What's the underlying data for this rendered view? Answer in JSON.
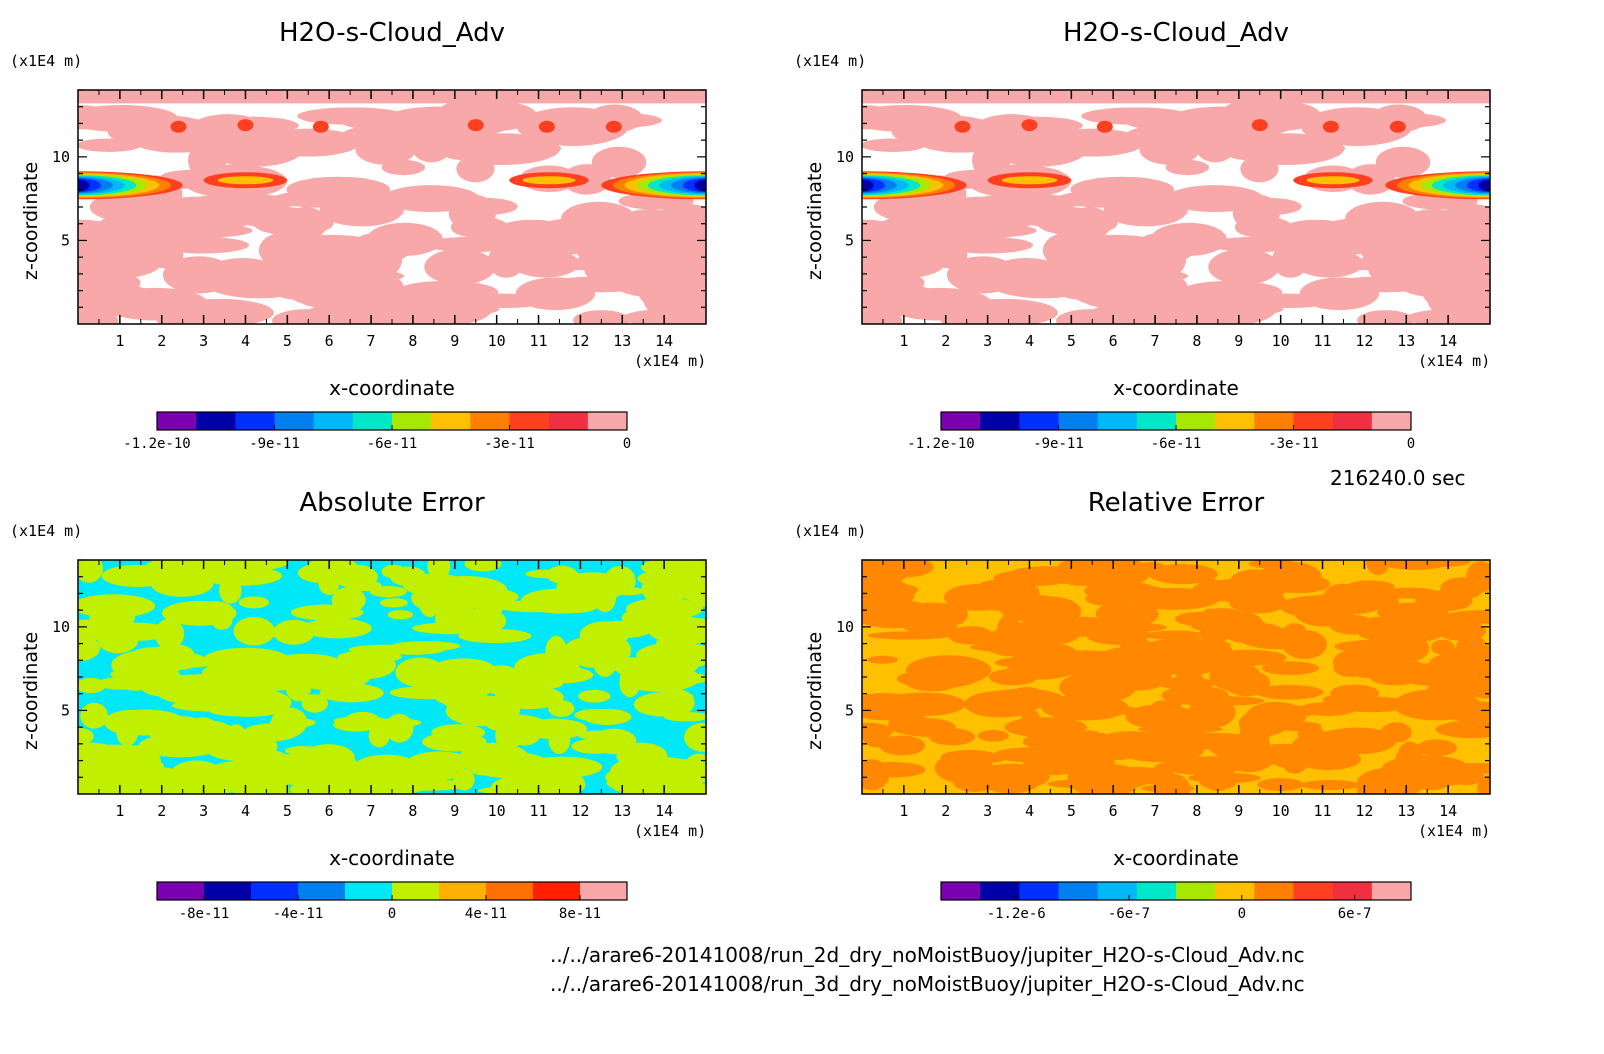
{
  "chart_data": [
    {
      "type": "heatmap",
      "title": "H2O-s-Cloud_Adv",
      "xlabel": "x-coordinate",
      "ylabel": "z-coordinate",
      "x_unit": "(x1E4 m)",
      "y_unit": "(x1E4 m)",
      "xlim": [
        0,
        15
      ],
      "ylim": [
        0,
        14
      ],
      "x_ticks": [
        1,
        2,
        3,
        4,
        5,
        6,
        7,
        8,
        9,
        10,
        11,
        12,
        13,
        14
      ],
      "y_ticks": [
        5,
        10
      ],
      "colorbar": {
        "min": -1.2e-10,
        "max": 0,
        "levels": 11,
        "tick_values": [
          -1.2e-10,
          -9e-11,
          -6e-11,
          -3e-11,
          0
        ],
        "tick_labels": [
          "-1.2e-10",
          "-9e-11",
          "-6e-11",
          "-3e-11",
          "0"
        ],
        "colors": [
          "#7a00b0",
          "#0000a8",
          "#0030ff",
          "#0080f0",
          "#00b8f8",
          "#00e8c8",
          "#a8e800",
          "#ffc000",
          "#ff8000",
          "#ff4020",
          "#f03040",
          "#f8a8a8"
        ]
      },
      "features": [
        {
          "z": 8.3,
          "x_from": 0,
          "x_to": 2.5,
          "value": -1.15e-10,
          "label": "left band"
        },
        {
          "z": 8.3,
          "x_from": 12.5,
          "x_to": 15,
          "value": -1.15e-10,
          "label": "right band"
        },
        {
          "z": 8.6,
          "x_from": 3.0,
          "x_to": 5.0,
          "value": -3e-11,
          "label": "blob"
        },
        {
          "z": 8.6,
          "x_from": 10.3,
          "x_to": 12.2,
          "value": -3e-11,
          "label": "blob"
        }
      ]
    },
    {
      "type": "heatmap",
      "title": "H2O-s-Cloud_Adv",
      "xlabel": "x-coordinate",
      "ylabel": "z-coordinate",
      "x_unit": "(x1E4 m)",
      "y_unit": "(x1E4 m)",
      "xlim": [
        0,
        15
      ],
      "ylim": [
        0,
        14
      ],
      "x_ticks": [
        1,
        2,
        3,
        4,
        5,
        6,
        7,
        8,
        9,
        10,
        11,
        12,
        13,
        14
      ],
      "y_ticks": [
        5,
        10
      ],
      "colorbar": {
        "min": -1.2e-10,
        "max": 0,
        "levels": 11,
        "tick_values": [
          -1.2e-10,
          -9e-11,
          -6e-11,
          -3e-11,
          0
        ],
        "tick_labels": [
          "-1.2e-10",
          "-9e-11",
          "-6e-11",
          "-3e-11",
          "0"
        ],
        "colors": [
          "#7a00b0",
          "#0000a8",
          "#0030ff",
          "#0080f0",
          "#00b8f8",
          "#00e8c8",
          "#a8e800",
          "#ffc000",
          "#ff8000",
          "#ff4020",
          "#f03040",
          "#f8a8a8"
        ]
      },
      "features": [
        {
          "z": 8.3,
          "x_from": 0,
          "x_to": 2.5,
          "value": -1.15e-10,
          "label": "left band"
        },
        {
          "z": 8.3,
          "x_from": 12.5,
          "x_to": 15,
          "value": -1.15e-10,
          "label": "right band"
        },
        {
          "z": 8.6,
          "x_from": 3.0,
          "x_to": 5.0,
          "value": -3e-11,
          "label": "blob"
        },
        {
          "z": 8.6,
          "x_from": 10.3,
          "x_to": 12.2,
          "value": -3e-11,
          "label": "blob"
        }
      ]
    },
    {
      "type": "heatmap",
      "title": "Absolute Error",
      "xlabel": "x-coordinate",
      "ylabel": "z-coordinate",
      "x_unit": "(x1E4 m)",
      "y_unit": "(x1E4 m)",
      "xlim": [
        0,
        15
      ],
      "ylim": [
        0,
        14
      ],
      "x_ticks": [
        1,
        2,
        3,
        4,
        5,
        6,
        7,
        8,
        9,
        10,
        11,
        12,
        13,
        14
      ],
      "y_ticks": [
        5,
        10
      ],
      "colorbar": {
        "min": -1e-10,
        "max": 1e-10,
        "tick_values": [
          -8e-11,
          -4e-11,
          0,
          4e-11,
          8e-11
        ],
        "tick_labels": [
          "-8e-11",
          "-4e-11",
          "0",
          "4e-11",
          "8e-11"
        ],
        "colors": [
          "#7a00b0",
          "#0000a8",
          "#0030ff",
          "#0080f0",
          "#00e8f8",
          "#c0f000",
          "#ffb000",
          "#ff7000",
          "#ff2000",
          "#f8a8a8"
        ]
      },
      "dominant_values": [
        -1e-11,
        1e-11
      ]
    },
    {
      "type": "heatmap",
      "title": "Relative Error",
      "xlabel": "x-coordinate",
      "ylabel": "z-coordinate",
      "x_unit": "(x1E4 m)",
      "y_unit": "(x1E4 m)",
      "xlim": [
        0,
        15
      ],
      "ylim": [
        0,
        14
      ],
      "x_ticks": [
        1,
        2,
        3,
        4,
        5,
        6,
        7,
        8,
        9,
        10,
        11,
        12,
        13,
        14
      ],
      "y_ticks": [
        5,
        10
      ],
      "colorbar": {
        "min": -1.6e-06,
        "max": 9e-07,
        "tick_values": [
          -1.2e-06,
          -6e-07,
          0,
          6e-07
        ],
        "tick_labels": [
          "-1.2e-6",
          "-6e-7",
          "0",
          "6e-7"
        ],
        "colors": [
          "#7a00b0",
          "#0000a8",
          "#0030ff",
          "#0080f0",
          "#00b8f8",
          "#00e8c8",
          "#a8e800",
          "#ffc000",
          "#ff8000",
          "#ff4020",
          "#f03040",
          "#f8a8a8"
        ]
      },
      "dominant_values": [
        1e-07,
        2e-07
      ]
    }
  ],
  "time_label": "216240.0 sec",
  "footer_files": [
    "../../arare6-20141008/run_2d_dry_noMoistBuoy/jupiter_H2O-s-Cloud_Adv.nc",
    "../../arare6-20141008/run_3d_dry_noMoistBuoy/jupiter_H2O-s-Cloud_Adv.nc"
  ]
}
